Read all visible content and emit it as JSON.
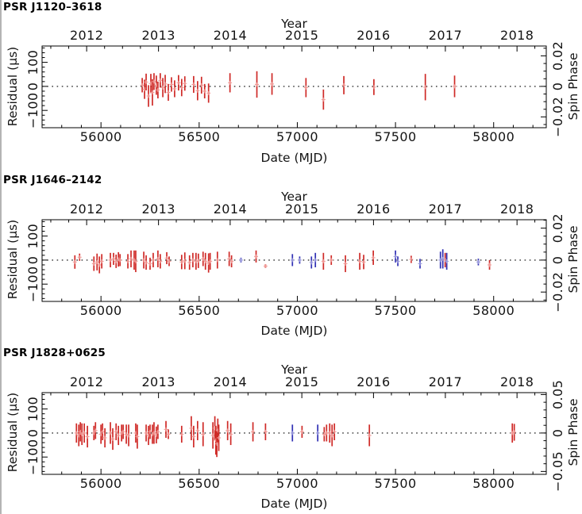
{
  "colors": {
    "red": "#cf2a27",
    "red_marker": "#f29a96",
    "blue": "#2f2fb3",
    "blue_marker": "#9b9bde",
    "frame": "#000000",
    "text": "#141414",
    "left_border": "#b4b4b4",
    "background": "#ffffff"
  },
  "chart_data": [
    {
      "type": "scatter",
      "title": "PSR J1120–3618",
      "top_xlabel": "Year",
      "xlabel": "Date (MJD)",
      "ylabel": "Residual (μs)",
      "y2label": "Spin Phase",
      "xlim": [
        55700,
        58268
      ],
      "ylim": [
        -172,
        168
      ],
      "x_ticks": [
        [
          56000,
          "56000"
        ],
        [
          56500,
          "56500"
        ],
        [
          57000,
          "57000"
        ],
        [
          57500,
          "57500"
        ],
        [
          58000,
          "58000"
        ]
      ],
      "x_minor_step": 100,
      "year_ticks": [
        [
          "2012",
          55927
        ],
        [
          "2013",
          56293
        ],
        [
          "2014",
          56658
        ],
        [
          "2015",
          57023
        ],
        [
          "2016",
          57388
        ],
        [
          "2017",
          57754
        ],
        [
          "2018",
          58119
        ]
      ],
      "year_minor_step": 91.31,
      "y_ticks": [
        [
          -100,
          "−100"
        ],
        [
          0,
          "0"
        ],
        [
          100,
          "100"
        ]
      ],
      "y_minor_step": 20,
      "y2_ticks": [
        [
          -0.02,
          "−0.02"
        ],
        [
          0,
          "0"
        ],
        [
          0.02,
          "0.02"
        ]
      ],
      "y2_minor_step": 0.005,
      "us_per_phase": 6350,
      "zero_line": true,
      "grid": false,
      "series": [
        {
          "name": "red points",
          "color_key": "red",
          "points": [
            [
              56210,
              5,
              30
            ],
            [
              56222,
              -12,
              40
            ],
            [
              56230,
              18,
              35
            ],
            [
              56242,
              -40,
              45
            ],
            [
              56254,
              12,
              40
            ],
            [
              56262,
              -25,
              55
            ],
            [
              56270,
              20,
              35
            ],
            [
              56282,
              5,
              40
            ],
            [
              56290,
              -15,
              35
            ],
            [
              56302,
              25,
              30
            ],
            [
              56315,
              -5,
              40
            ],
            [
              56327,
              10,
              38
            ],
            [
              56343,
              -25,
              35
            ],
            [
              56359,
              8,
              30
            ],
            [
              56375,
              -10,
              35
            ],
            [
              56395,
              15,
              32
            ],
            [
              56411,
              -5,
              36
            ],
            [
              56427,
              12,
              30
            ],
            [
              56472,
              8,
              35
            ],
            [
              56492,
              -18,
              40
            ],
            [
              56512,
              5,
              35
            ],
            [
              56528,
              -20,
              30
            ],
            [
              56548,
              -28,
              40
            ],
            [
              56657,
              15,
              40
            ],
            [
              56794,
              8,
              55
            ],
            [
              56871,
              10,
              45
            ],
            [
              57044,
              -5,
              40
            ],
            [
              57133,
              -55,
              42
            ],
            [
              57237,
              5,
              38
            ],
            [
              57390,
              -3,
              33
            ],
            [
              57652,
              -3,
              55
            ],
            [
              57801,
              0,
              45
            ]
          ]
        },
        {
          "name": "blue points",
          "color_key": "blue",
          "points": []
        }
      ]
    },
    {
      "type": "scatter",
      "title": "PSR J1646–2142",
      "top_xlabel": "Year",
      "xlabel": "Date (MJD)",
      "ylabel": "Residual (μs)",
      "y2label": "Spin Phase",
      "xlim": [
        55700,
        58268
      ],
      "ylim": [
        -172,
        168
      ],
      "x_ticks": [
        [
          56000,
          "56000"
        ],
        [
          56500,
          "56500"
        ],
        [
          57000,
          "57000"
        ],
        [
          57500,
          "57500"
        ],
        [
          58000,
          "58000"
        ]
      ],
      "x_minor_step": 100,
      "year_ticks": [
        [
          "2012",
          55927
        ],
        [
          "2013",
          56293
        ],
        [
          "2014",
          56658
        ],
        [
          "2015",
          57023
        ],
        [
          "2016",
          57388
        ],
        [
          "2017",
          57754
        ],
        [
          "2018",
          58119
        ]
      ],
      "year_minor_step": 91.31,
      "y_ticks": [
        [
          -100,
          "−100"
        ],
        [
          0,
          "0"
        ],
        [
          100,
          "100"
        ]
      ],
      "y_minor_step": 20,
      "y2_ticks": [
        [
          -0.02,
          "−0.02"
        ],
        [
          0,
          "0"
        ],
        [
          0.02,
          "0.02"
        ]
      ],
      "y2_minor_step": 0.005,
      "us_per_phase": 6650,
      "zero_line": true,
      "grid": false,
      "series": [
        {
          "name": "red points",
          "color_key": "red",
          "points": [
            [
              55867,
              -8,
              28
            ],
            [
              55891,
              12,
              15
            ],
            [
              55964,
              -15,
              30
            ],
            [
              55980,
              -8,
              35
            ],
            [
              55992,
              -20,
              35
            ],
            [
              56004,
              -5,
              30
            ],
            [
              56048,
              0,
              30
            ],
            [
              56064,
              5,
              25
            ],
            [
              56077,
              -5,
              28
            ],
            [
              56089,
              3,
              30
            ],
            [
              56097,
              0,
              25
            ],
            [
              56137,
              -5,
              30
            ],
            [
              56153,
              5,
              35
            ],
            [
              56169,
              0,
              40
            ],
            [
              56177,
              -5,
              45
            ],
            [
              56218,
              0,
              35
            ],
            [
              56230,
              -10,
              30
            ],
            [
              56250,
              -15,
              25
            ],
            [
              56266,
              0,
              30
            ],
            [
              56290,
              5,
              35
            ],
            [
              56302,
              -5,
              30
            ],
            [
              56335,
              8,
              25
            ],
            [
              56347,
              -5,
              20
            ],
            [
              56411,
              -8,
              30
            ],
            [
              56427,
              -3,
              35
            ],
            [
              56451,
              -10,
              30
            ],
            [
              56468,
              0,
              30
            ],
            [
              56484,
              -5,
              35
            ],
            [
              56496,
              -3,
              30
            ],
            [
              56520,
              5,
              30
            ],
            [
              56532,
              -5,
              35
            ],
            [
              56548,
              -12,
              40
            ],
            [
              56556,
              -5,
              35
            ],
            [
              56593,
              0,
              35
            ],
            [
              56653,
              5,
              30
            ],
            [
              56665,
              -5,
              25
            ],
            [
              56790,
              15,
              25
            ],
            [
              56838,
              -25,
              8
            ],
            [
              57133,
              -5,
              35
            ],
            [
              57173,
              0,
              20
            ],
            [
              57245,
              -15,
              35
            ],
            [
              57318,
              -5,
              35
            ],
            [
              57338,
              -8,
              30
            ],
            [
              57387,
              10,
              30
            ],
            [
              57580,
              3,
              15
            ],
            [
              57753,
              0,
              30
            ],
            [
              57979,
              -20,
              20
            ]
          ]
        },
        {
          "name": "blue points",
          "color_key": "blue",
          "points": [
            [
              56713,
              0,
              10
            ],
            [
              56975,
              0,
              25
            ],
            [
              57012,
              0,
              15
            ],
            [
              57072,
              -10,
              25
            ],
            [
              57092,
              0,
              30
            ],
            [
              57500,
              15,
              25
            ],
            [
              57512,
              -5,
              20
            ],
            [
              57625,
              -15,
              20
            ],
            [
              57729,
              0,
              35
            ],
            [
              57741,
              5,
              40
            ],
            [
              57761,
              -5,
              35
            ],
            [
              57922,
              -8,
              14
            ]
          ]
        }
      ]
    },
    {
      "type": "scatter",
      "title": "PSR J1828+0625",
      "top_xlabel": "Year",
      "xlabel": "Date (MJD)",
      "ylabel": "Residual (μs)",
      "y2label": "Spin Phase",
      "xlim": [
        55700,
        58268
      ],
      "ylim": [
        -172,
        168
      ],
      "x_ticks": [
        [
          56000,
          "56000"
        ],
        [
          56500,
          "56500"
        ],
        [
          57000,
          "57000"
        ],
        [
          57500,
          "57500"
        ],
        [
          58000,
          "58000"
        ]
      ],
      "x_minor_step": 100,
      "year_ticks": [
        [
          "2012",
          55927
        ],
        [
          "2013",
          56293
        ],
        [
          "2014",
          56658
        ],
        [
          "2015",
          57023
        ],
        [
          "2016",
          57388
        ],
        [
          "2017",
          57754
        ],
        [
          "2018",
          58119
        ]
      ],
      "year_minor_step": 91.31,
      "y_ticks": [
        [
          -100,
          "−100"
        ],
        [
          0,
          "0"
        ],
        [
          100,
          "100"
        ]
      ],
      "y_minor_step": 20,
      "y2_ticks": [
        [
          -0.05,
          "−0.05"
        ],
        [
          0,
          "0"
        ],
        [
          0.05,
          "0.05"
        ]
      ],
      "y2_minor_step": 0.01,
      "us_per_phase": 3200,
      "zero_line": true,
      "grid": false,
      "series": [
        {
          "name": "red points",
          "color_key": "red",
          "points": [
            [
              55875,
              0,
              40
            ],
            [
              55887,
              -10,
              45
            ],
            [
              55895,
              5,
              40
            ],
            [
              55903,
              -5,
              45
            ],
            [
              55915,
              0,
              40
            ],
            [
              55931,
              -15,
              45
            ],
            [
              55964,
              0,
              30
            ],
            [
              55972,
              10,
              35
            ],
            [
              56000,
              -5,
              40
            ],
            [
              56008,
              5,
              35
            ],
            [
              56020,
              -20,
              40
            ],
            [
              56048,
              0,
              45
            ],
            [
              56060,
              -25,
              45
            ],
            [
              56077,
              5,
              35
            ],
            [
              56089,
              -10,
              40
            ],
            [
              56105,
              0,
              35
            ],
            [
              56113,
              5,
              30
            ],
            [
              56129,
              -5,
              40
            ],
            [
              56141,
              -10,
              45
            ],
            [
              56177,
              0,
              40
            ],
            [
              56185,
              -15,
              50
            ],
            [
              56230,
              0,
              35
            ],
            [
              56242,
              -10,
              40
            ],
            [
              56250,
              5,
              30
            ],
            [
              56262,
              -5,
              40
            ],
            [
              56270,
              0,
              45
            ],
            [
              56282,
              -8,
              35
            ],
            [
              56290,
              5,
              30
            ],
            [
              56331,
              15,
              35
            ],
            [
              56343,
              -5,
              20
            ],
            [
              56411,
              -5,
              35
            ],
            [
              56460,
              20,
              50
            ],
            [
              56472,
              -15,
              45
            ],
            [
              56492,
              10,
              40
            ],
            [
              56520,
              -5,
              50
            ],
            [
              56570,
              -10,
              55
            ],
            [
              56580,
              20,
              50
            ],
            [
              56585,
              -30,
              60
            ],
            [
              56590,
              -45,
              55
            ],
            [
              56595,
              10,
              50
            ],
            [
              56600,
              -20,
              55
            ],
            [
              56645,
              10,
              40
            ],
            [
              56661,
              -5,
              45
            ],
            [
              56774,
              5,
              40
            ],
            [
              56838,
              5,
              35
            ],
            [
              57024,
              5,
              25
            ],
            [
              57137,
              -5,
              30
            ],
            [
              57149,
              0,
              35
            ],
            [
              57165,
              0,
              40
            ],
            [
              57177,
              -10,
              45
            ],
            [
              57189,
              5,
              35
            ],
            [
              57367,
              -10,
              45
            ],
            [
              58095,
              0,
              40
            ],
            [
              58105,
              3,
              35
            ]
          ]
        },
        {
          "name": "blue points",
          "color_key": "blue",
          "points": [
            [
              56975,
              0,
              35
            ],
            [
              57104,
              0,
              35
            ]
          ]
        }
      ]
    }
  ]
}
